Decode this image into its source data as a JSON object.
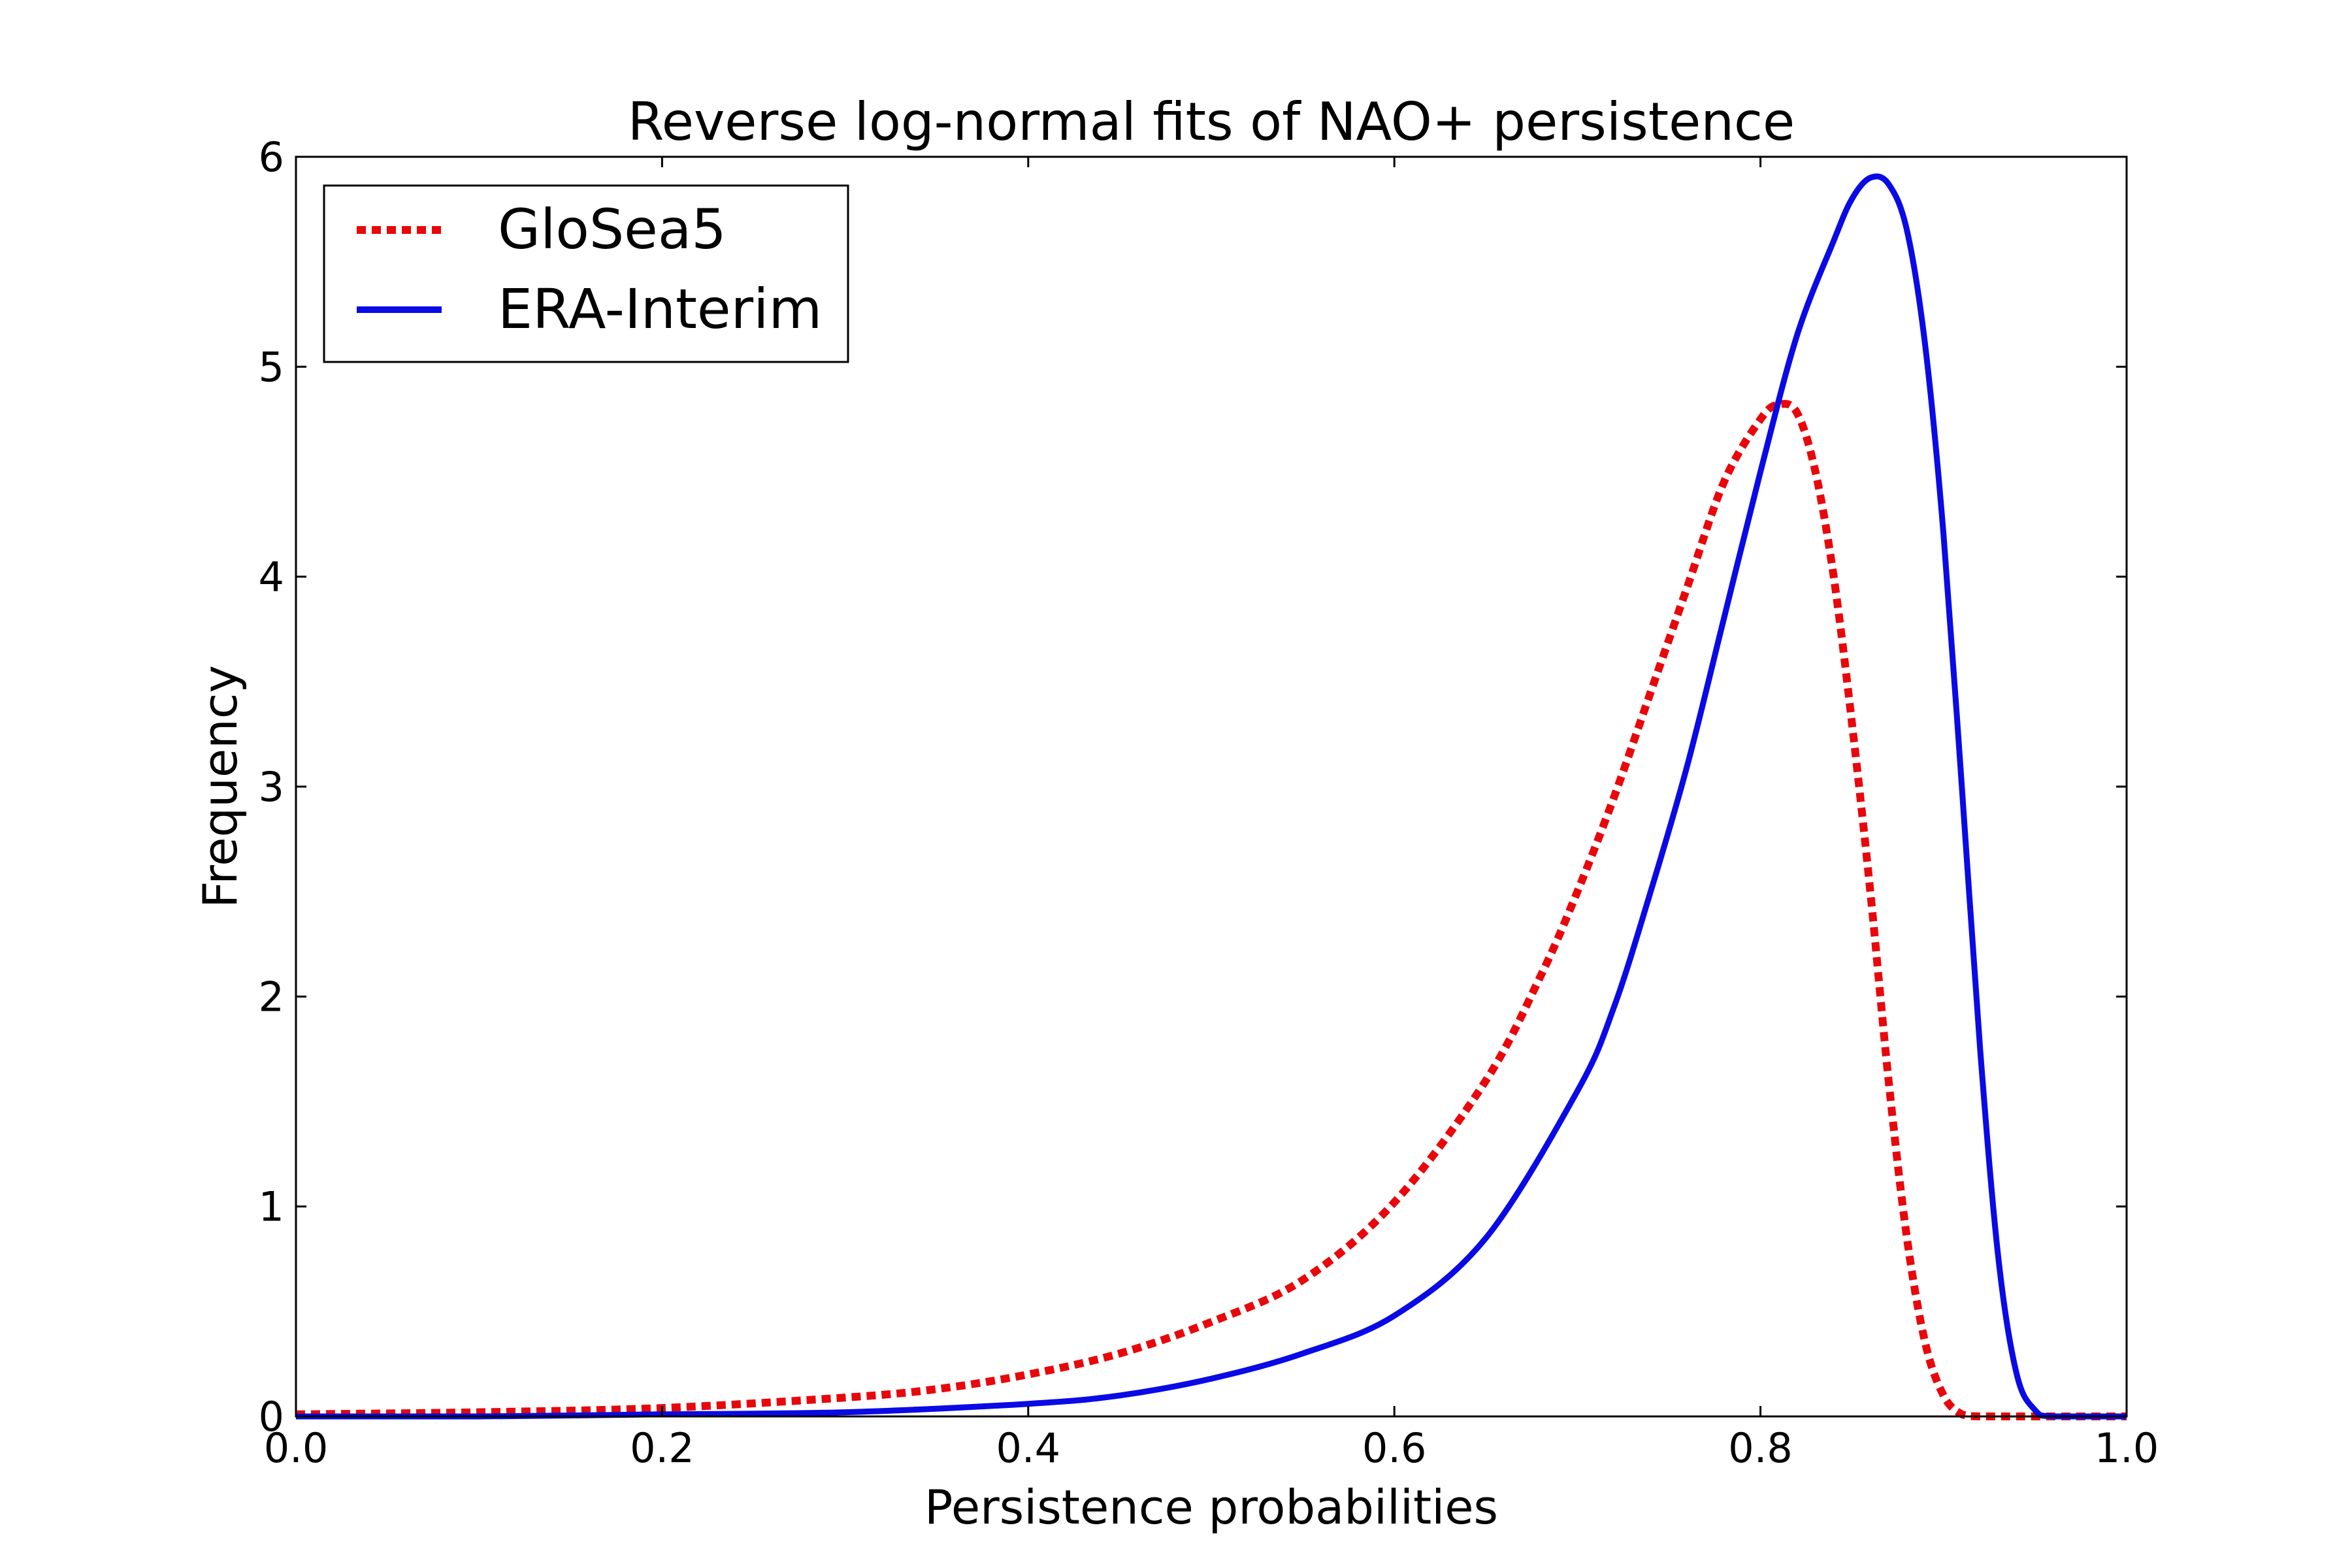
{
  "chart_data": {
    "type": "line",
    "title": "Reverse log-normal fits of NAO+ persistence",
    "xlabel": "Persistence probabilities",
    "ylabel": "Frequency",
    "xlim": [
      0.0,
      1.0
    ],
    "ylim": [
      0,
      6
    ],
    "xticks": [
      0.0,
      0.2,
      0.4,
      0.6,
      0.8,
      1.0
    ],
    "xtick_labels": [
      "0.0",
      "0.2",
      "0.4",
      "0.6",
      "0.8",
      "1.0"
    ],
    "yticks": [
      0,
      1,
      2,
      3,
      4,
      5,
      6
    ],
    "ytick_labels": [
      "0",
      "1",
      "2",
      "3",
      "4",
      "5",
      "6"
    ],
    "grid": false,
    "legend_position": "top-left",
    "series": [
      {
        "name": "GloSea5",
        "color": "#e8070a",
        "style": "dashed",
        "x": [
          0.0,
          0.1,
          0.2,
          0.3,
          0.35,
          0.4,
          0.45,
          0.5,
          0.55,
          0.6,
          0.65,
          0.68,
          0.7,
          0.72,
          0.74,
          0.76,
          0.78,
          0.8,
          0.81,
          0.82,
          0.83,
          0.84,
          0.85,
          0.86,
          0.87,
          0.88,
          0.89,
          0.9,
          0.91,
          0.92,
          0.94,
          0.97,
          1.0
        ],
        "y": [
          0.01,
          0.02,
          0.04,
          0.09,
          0.13,
          0.2,
          0.3,
          0.45,
          0.65,
          1.02,
          1.6,
          2.1,
          2.5,
          2.95,
          3.45,
          3.95,
          4.45,
          4.75,
          4.82,
          4.78,
          4.5,
          4.0,
          3.3,
          2.5,
          1.6,
          0.85,
          0.35,
          0.1,
          0.01,
          0.0,
          0.0,
          0.0,
          0.0
        ]
      },
      {
        "name": "ERA-Interim",
        "color": "#0a0ae6",
        "style": "solid",
        "x": [
          0.0,
          0.1,
          0.2,
          0.3,
          0.4,
          0.45,
          0.5,
          0.55,
          0.6,
          0.65,
          0.7,
          0.72,
          0.74,
          0.76,
          0.78,
          0.8,
          0.82,
          0.84,
          0.85,
          0.86,
          0.87,
          0.88,
          0.89,
          0.9,
          0.91,
          0.92,
          0.93,
          0.94,
          0.95,
          0.96,
          1.0
        ],
        "y": [
          0.0,
          0.0,
          0.01,
          0.02,
          0.06,
          0.1,
          0.18,
          0.3,
          0.48,
          0.85,
          1.55,
          1.95,
          2.5,
          3.1,
          3.8,
          4.5,
          5.15,
          5.6,
          5.8,
          5.9,
          5.87,
          5.65,
          5.1,
          4.2,
          3.0,
          1.75,
          0.75,
          0.2,
          0.03,
          0.0,
          0.0
        ]
      }
    ]
  }
}
